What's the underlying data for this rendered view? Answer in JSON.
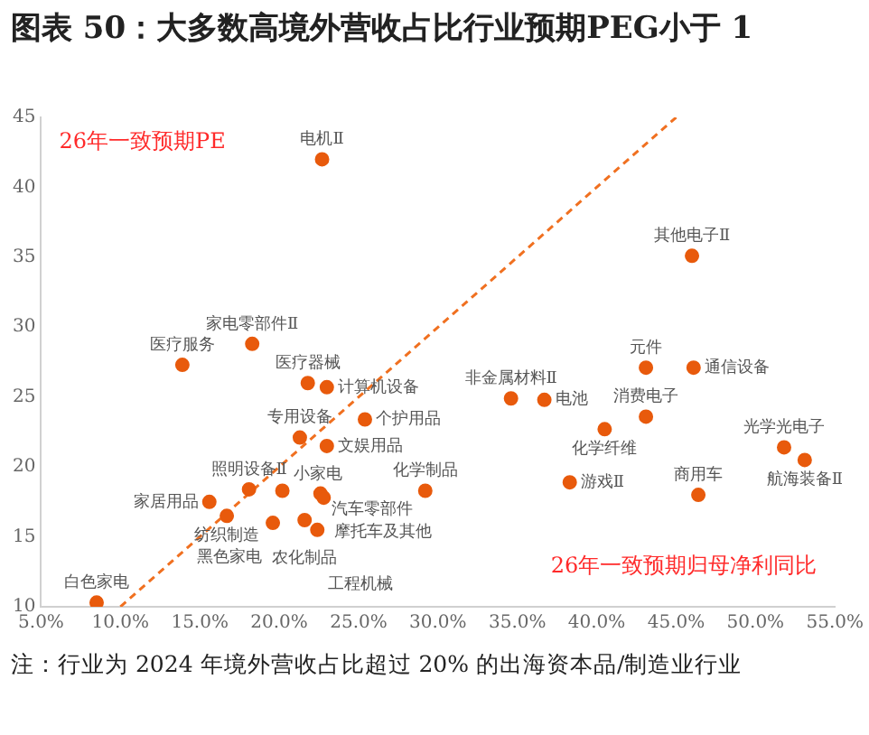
{
  "chart_data": {
    "type": "scatter",
    "title": "图表 50：大多数高境外营收占比行业预期PEG小于 1",
    "xlabel": "26年一致预期归母净利同比",
    "ylabel": "26年一致预期PE",
    "xlim": [
      5,
      55
    ],
    "xticks": [
      {
        "value": 5,
        "label": "5.0%"
      },
      {
        "value": 10,
        "label": "10.0%"
      },
      {
        "value": 15,
        "label": "15.0%"
      },
      {
        "value": 20,
        "label": "20.0%"
      },
      {
        "value": 25,
        "label": "25.0%"
      },
      {
        "value": 30,
        "label": "30.0%"
      },
      {
        "value": 35,
        "label": "35.0%"
      },
      {
        "value": 40,
        "label": "40.0%"
      },
      {
        "value": 45,
        "label": "45.0%"
      },
      {
        "value": 50,
        "label": "50.0%"
      },
      {
        "value": 55,
        "label": "55.0%"
      }
    ],
    "ylim": [
      10,
      45
    ],
    "yticks": [
      10,
      15,
      20,
      25,
      30,
      35,
      40,
      45
    ],
    "grid": false,
    "legend": false,
    "series": [
      {
        "marker": "circle",
        "color": "#e85a0c",
        "x": [
          22.7,
          13.9,
          18.3,
          21.8,
          23.0,
          25.4,
          21.3,
          23.0,
          18.1,
          15.6,
          16.7,
          8.5,
          20.2,
          22.6,
          21.6,
          22.8,
          19.6,
          22.4,
          29.2,
          46.0,
          43.1,
          46.1,
          34.6,
          36.7,
          43.1,
          40.5,
          51.8,
          53.1,
          38.3,
          46.4
        ],
        "values": [
          42.0,
          27.3,
          28.8,
          26.0,
          25.7,
          23.4,
          22.1,
          21.5,
          18.4,
          17.5,
          16.5,
          10.3,
          18.3,
          18.1,
          16.2,
          17.8,
          16.0,
          15.5,
          18.3,
          35.1,
          27.1,
          27.1,
          24.9,
          24.8,
          23.6,
          22.7,
          21.4,
          20.5,
          18.9,
          18.0
        ]
      },
      {
        "type": "line",
        "color": "#f07020",
        "line_style": "dashed",
        "x": [
          10,
          45
        ],
        "values": [
          10,
          45
        ]
      }
    ],
    "annotations": [
      {
        "text": "电机Ⅱ",
        "x": 22.7,
        "y": 42.0
      },
      {
        "text": "医疗服务",
        "x": 13.9,
        "y": 27.3
      },
      {
        "text": "家电零部件Ⅱ",
        "x": 18.3,
        "y": 28.8
      },
      {
        "text": "医疗器械",
        "x": 21.8,
        "y": 26.0
      },
      {
        "text": "计算机设备",
        "x": 23.0,
        "y": 25.7
      },
      {
        "text": "个护用品",
        "x": 25.4,
        "y": 23.4
      },
      {
        "text": "专用设备",
        "x": 21.3,
        "y": 22.1
      },
      {
        "text": "文娱用品",
        "x": 23.0,
        "y": 21.5
      },
      {
        "text": "照明设备Ⅱ",
        "x": 18.1,
        "y": 18.4
      },
      {
        "text": "家居用品",
        "x": 15.6,
        "y": 17.5
      },
      {
        "text": "纺织制造",
        "x": 16.7,
        "y": 16.5
      },
      {
        "text": "白色家电",
        "x": 8.5,
        "y": 10.3
      },
      {
        "text": "小家电",
        "x": 20.2,
        "y": 18.3
      },
      {
        "text": "汽车零部件",
        "x": 22.6,
        "y": 18.1
      },
      {
        "text": "农化制品",
        "x": 21.6,
        "y": 16.2
      },
      {
        "text": "摩托车及其他",
        "x": 22.8,
        "y": 17.8
      },
      {
        "text": "黑色家电",
        "x": 19.6,
        "y": 16.0
      },
      {
        "text": "工程机械",
        "x": 22.4,
        "y": 15.5
      },
      {
        "text": "化学制品",
        "x": 29.2,
        "y": 18.3
      },
      {
        "text": "其他电子Ⅱ",
        "x": 46.0,
        "y": 35.1
      },
      {
        "text": "元件",
        "x": 43.1,
        "y": 27.1
      },
      {
        "text": "通信设备",
        "x": 46.1,
        "y": 27.1
      },
      {
        "text": "非金属材料Ⅱ",
        "x": 34.6,
        "y": 24.9
      },
      {
        "text": "电池",
        "x": 36.7,
        "y": 24.8
      },
      {
        "text": "消费电子",
        "x": 43.1,
        "y": 23.6
      },
      {
        "text": "化学纤维",
        "x": 40.5,
        "y": 22.7
      },
      {
        "text": "光学光电子",
        "x": 51.8,
        "y": 21.4
      },
      {
        "text": "航海装备Ⅱ",
        "x": 53.1,
        "y": 20.5
      },
      {
        "text": "游戏Ⅱ",
        "x": 38.3,
        "y": 18.9
      },
      {
        "text": "商用车",
        "x": 46.4,
        "y": 18.0
      },
      "注：行业为 2024 年境外营收占比超过 20% 的出海资本品/制造业行业"
    ]
  }
}
